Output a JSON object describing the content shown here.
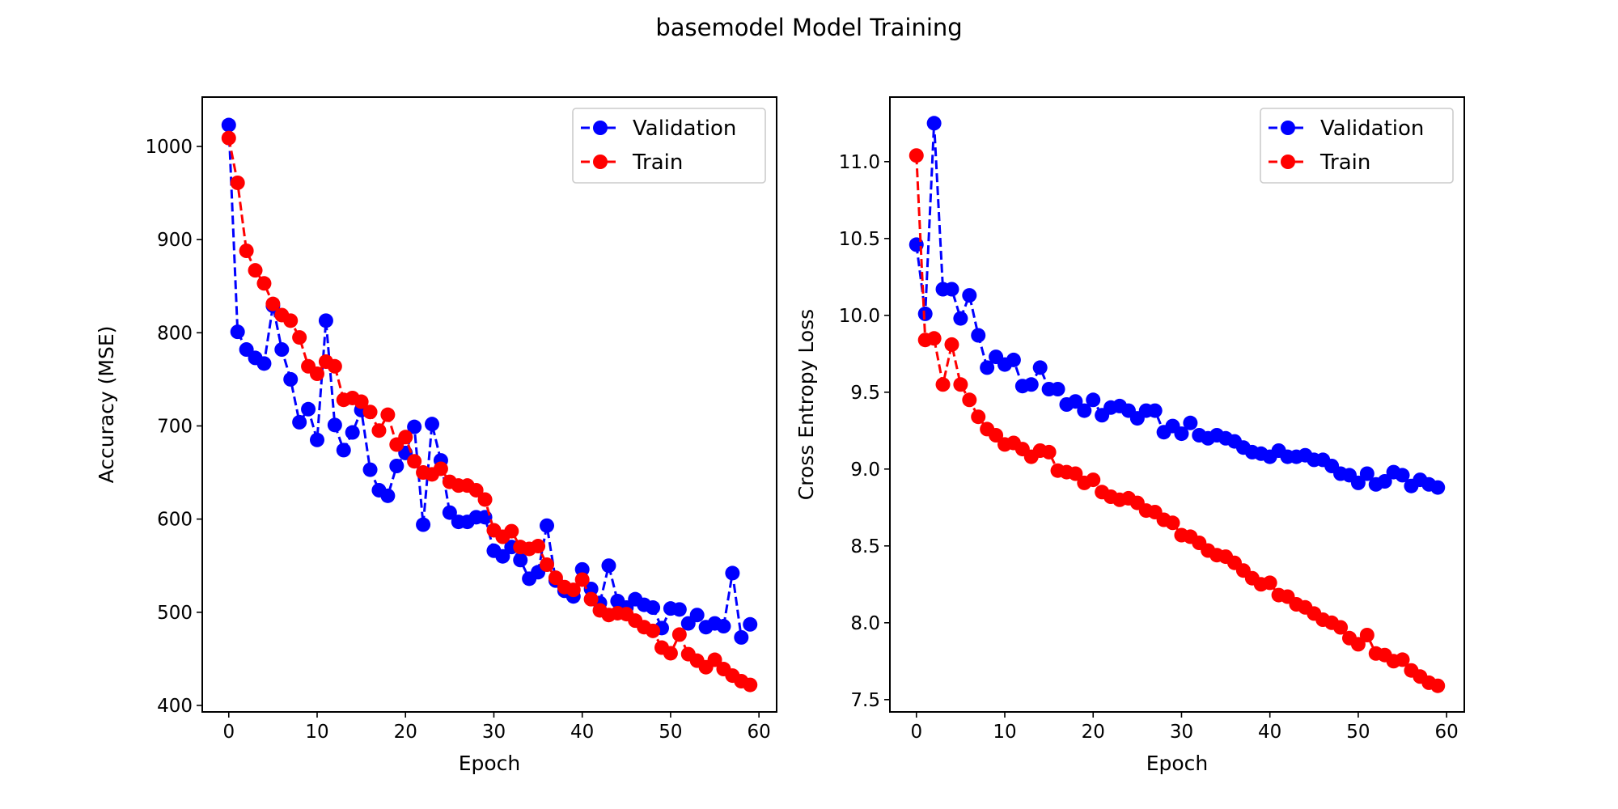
{
  "figure": {
    "title": "basemodel Model Training"
  },
  "chart_data": [
    {
      "type": "line",
      "title": "",
      "xlabel": "Epoch",
      "ylabel": "Accuracy (MSE)",
      "xlim": [
        -3,
        62
      ],
      "ylim": [
        393,
        1053
      ],
      "xticks": [
        0,
        10,
        20,
        30,
        40,
        50,
        60
      ],
      "yticks": [
        400,
        500,
        600,
        700,
        800,
        900,
        1000
      ],
      "grid": false,
      "legend_position": "top-right",
      "x": [
        0,
        1,
        2,
        3,
        4,
        5,
        6,
        7,
        8,
        9,
        10,
        11,
        12,
        13,
        14,
        15,
        16,
        17,
        18,
        19,
        20,
        21,
        22,
        23,
        24,
        25,
        26,
        27,
        28,
        29,
        30,
        31,
        32,
        33,
        34,
        35,
        36,
        37,
        38,
        39,
        40,
        41,
        42,
        43,
        44,
        45,
        46,
        47,
        48,
        49,
        50,
        51,
        52,
        53,
        54,
        55,
        56,
        57,
        58,
        59
      ],
      "series": [
        {
          "name": "Validation",
          "color": "#0000ff",
          "marker": "circle",
          "linestyle": "dashed",
          "values": [
            1023,
            801,
            782,
            773,
            767,
            829,
            782,
            750,
            704,
            718,
            685,
            813,
            701,
            674,
            693,
            717,
            653,
            631,
            625,
            657,
            671,
            699,
            594,
            702,
            663,
            607,
            597,
            597,
            602,
            602,
            566,
            560,
            570,
            556,
            536,
            543,
            593,
            534,
            523,
            517,
            546,
            525,
            510,
            550,
            512,
            505,
            514,
            508,
            505,
            483,
            504,
            503,
            488,
            497,
            484,
            488,
            485,
            542,
            473,
            487
          ]
        },
        {
          "name": "Train",
          "color": "#ff0000",
          "marker": "circle",
          "linestyle": "dashed",
          "values": [
            1009,
            961,
            888,
            867,
            853,
            831,
            819,
            813,
            795,
            764,
            756,
            769,
            764,
            728,
            730,
            726,
            715,
            695,
            712,
            680,
            688,
            662,
            650,
            648,
            654,
            640,
            636,
            636,
            631,
            621,
            588,
            581,
            587,
            570,
            568,
            571,
            551,
            537,
            527,
            524,
            535,
            514,
            502,
            497,
            499,
            498,
            491,
            484,
            480,
            462,
            456,
            476,
            455,
            448,
            441,
            449,
            439,
            432,
            426,
            422
          ]
        }
      ]
    },
    {
      "type": "line",
      "title": "",
      "xlabel": "Epoch",
      "ylabel": "Cross Entropy Loss",
      "xlim": [
        -3,
        62
      ],
      "ylim": [
        7.42,
        11.42
      ],
      "xticks": [
        0,
        10,
        20,
        30,
        40,
        50,
        60
      ],
      "yticks": [
        7.5,
        8.0,
        8.5,
        9.0,
        9.5,
        10.0,
        10.5,
        11.0
      ],
      "grid": false,
      "legend_position": "top-right",
      "x": [
        0,
        1,
        2,
        3,
        4,
        5,
        6,
        7,
        8,
        9,
        10,
        11,
        12,
        13,
        14,
        15,
        16,
        17,
        18,
        19,
        20,
        21,
        22,
        23,
        24,
        25,
        26,
        27,
        28,
        29,
        30,
        31,
        32,
        33,
        34,
        35,
        36,
        37,
        38,
        39,
        40,
        41,
        42,
        43,
        44,
        45,
        46,
        47,
        48,
        49,
        50,
        51,
        52,
        53,
        54,
        55,
        56,
        57,
        58,
        59
      ],
      "series": [
        {
          "name": "Validation",
          "color": "#0000ff",
          "marker": "circle",
          "linestyle": "dashed",
          "values": [
            10.46,
            10.01,
            11.25,
            10.17,
            10.17,
            9.98,
            10.13,
            9.87,
            9.66,
            9.73,
            9.68,
            9.71,
            9.54,
            9.55,
            9.66,
            9.52,
            9.52,
            9.42,
            9.44,
            9.38,
            9.45,
            9.35,
            9.4,
            9.41,
            9.38,
            9.33,
            9.38,
            9.38,
            9.24,
            9.28,
            9.23,
            9.3,
            9.22,
            9.2,
            9.22,
            9.2,
            9.18,
            9.14,
            9.11,
            9.1,
            9.08,
            9.12,
            9.08,
            9.08,
            9.09,
            9.06,
            9.06,
            9.02,
            8.97,
            8.96,
            8.91,
            8.97,
            8.9,
            8.92,
            8.98,
            8.96,
            8.89,
            8.93,
            8.9,
            8.88
          ]
        },
        {
          "name": "Train",
          "color": "#ff0000",
          "marker": "circle",
          "linestyle": "dashed",
          "values": [
            11.04,
            9.84,
            9.85,
            9.55,
            9.81,
            9.55,
            9.45,
            9.34,
            9.26,
            9.22,
            9.16,
            9.17,
            9.13,
            9.08,
            9.12,
            9.11,
            8.99,
            8.98,
            8.97,
            8.91,
            8.93,
            8.85,
            8.82,
            8.8,
            8.81,
            8.78,
            8.73,
            8.72,
            8.67,
            8.65,
            8.57,
            8.56,
            8.52,
            8.47,
            8.44,
            8.43,
            8.39,
            8.34,
            8.29,
            8.25,
            8.26,
            8.18,
            8.17,
            8.12,
            8.1,
            8.06,
            8.02,
            8.0,
            7.97,
            7.9,
            7.86,
            7.92,
            7.8,
            7.79,
            7.75,
            7.76,
            7.69,
            7.65,
            7.61,
            7.59
          ]
        }
      ]
    }
  ]
}
